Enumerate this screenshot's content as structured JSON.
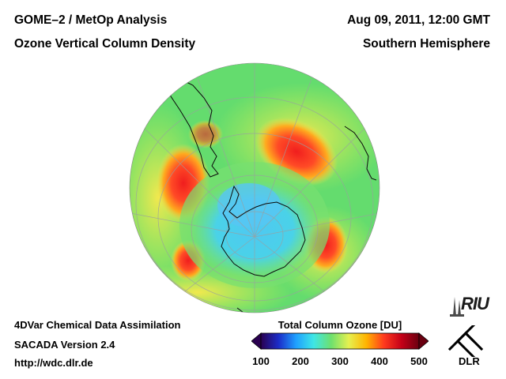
{
  "header": {
    "title_left": "GOME–2 / MetOp Analysis",
    "subtitle_left": "Ozone Vertical Column Density",
    "datetime": "Aug 09, 2011, 12:00 GMT",
    "region": "Southern Hemisphere"
  },
  "footer": {
    "line1": "4DVar Chemical Data Assimilation",
    "line2": "SACADA Version 2.4",
    "line3": "http://wdc.dlr.de"
  },
  "colorbar": {
    "title": "Total Column Ozone [DU]",
    "min": 100,
    "max": 500,
    "ticks": [
      "100",
      "200",
      "300",
      "400",
      "500"
    ],
    "colors": [
      "#2a0050",
      "#1b2cc8",
      "#1fa0ff",
      "#3ee6e6",
      "#6ee06e",
      "#e6f050",
      "#ffb400",
      "#ff3a1e",
      "#c40018",
      "#6a0010"
    ]
  },
  "map": {
    "projection": "orthographic, south polar view",
    "ocean_color": "#64dc6e",
    "ozone_hole_color": "#46c8f0",
    "high_ozone_color": "#ff3226"
  },
  "logos": {
    "riu": "RIU",
    "dlr": "DLR"
  }
}
